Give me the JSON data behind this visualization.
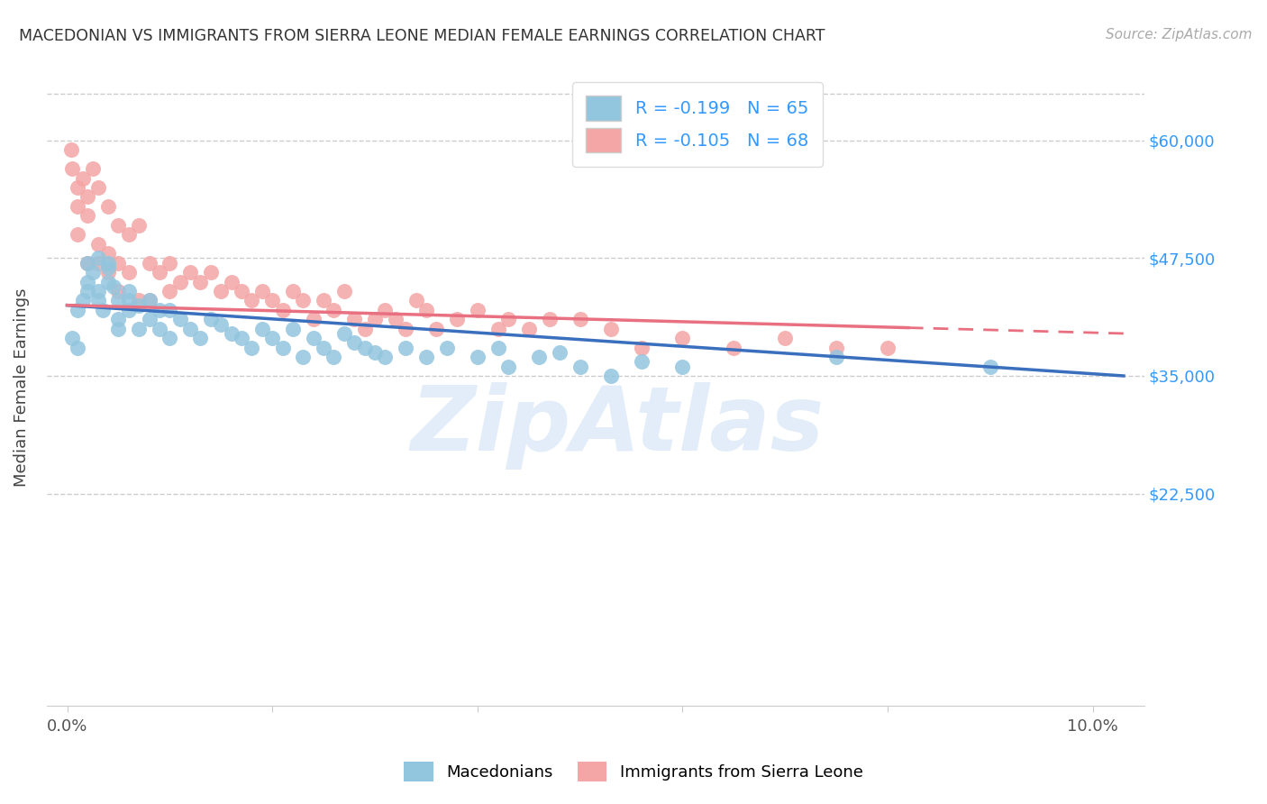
{
  "title": "MACEDONIAN VS IMMIGRANTS FROM SIERRA LEONE MEDIAN FEMALE EARNINGS CORRELATION CHART",
  "source": "Source: ZipAtlas.com",
  "ylabel_label": "Median Female Earnings",
  "blue_color": "#92c5de",
  "pink_color": "#f4a5a5",
  "blue_line_color": "#3a6fbe",
  "pink_line_color": "#e87080",
  "watermark": "ZipAtlas",
  "legend_label_1": "Macedonians",
  "legend_label_2": "Immigrants from Sierra Leone",
  "mac_R": "-0.199",
  "mac_N": "65",
  "sl_R": "-0.105",
  "sl_N": "68",
  "mac_scatter_x": [
    0.0005,
    0.001,
    0.001,
    0.0015,
    0.002,
    0.002,
    0.002,
    0.0025,
    0.003,
    0.003,
    0.003,
    0.0035,
    0.004,
    0.004,
    0.004,
    0.0045,
    0.005,
    0.005,
    0.005,
    0.006,
    0.006,
    0.006,
    0.007,
    0.007,
    0.008,
    0.008,
    0.009,
    0.009,
    0.01,
    0.01,
    0.011,
    0.012,
    0.013,
    0.014,
    0.015,
    0.016,
    0.017,
    0.018,
    0.019,
    0.02,
    0.021,
    0.022,
    0.023,
    0.024,
    0.025,
    0.026,
    0.027,
    0.028,
    0.029,
    0.03,
    0.031,
    0.033,
    0.035,
    0.037,
    0.04,
    0.042,
    0.043,
    0.046,
    0.048,
    0.05,
    0.053,
    0.056,
    0.06,
    0.075,
    0.09
  ],
  "mac_scatter_y": [
    39000,
    42000,
    38000,
    43000,
    44000,
    47000,
    45000,
    46000,
    47500,
    44000,
    43000,
    42000,
    45000,
    47000,
    46500,
    44500,
    43000,
    41000,
    40000,
    43000,
    42000,
    44000,
    42500,
    40000,
    43000,
    41000,
    42000,
    40000,
    42000,
    39000,
    41000,
    40000,
    39000,
    41000,
    40500,
    39500,
    39000,
    38000,
    40000,
    39000,
    38000,
    40000,
    37000,
    39000,
    38000,
    37000,
    39500,
    38500,
    38000,
    37500,
    37000,
    38000,
    37000,
    38000,
    37000,
    38000,
    36000,
    37000,
    37500,
    36000,
    35000,
    36500,
    36000,
    37000,
    36000
  ],
  "sl_scatter_x": [
    0.0004,
    0.0005,
    0.001,
    0.001,
    0.001,
    0.0015,
    0.002,
    0.002,
    0.002,
    0.0025,
    0.003,
    0.003,
    0.003,
    0.004,
    0.004,
    0.004,
    0.005,
    0.005,
    0.005,
    0.006,
    0.006,
    0.007,
    0.007,
    0.008,
    0.008,
    0.009,
    0.01,
    0.01,
    0.011,
    0.012,
    0.013,
    0.014,
    0.015,
    0.016,
    0.017,
    0.018,
    0.019,
    0.02,
    0.021,
    0.022,
    0.023,
    0.024,
    0.025,
    0.026,
    0.027,
    0.028,
    0.029,
    0.03,
    0.031,
    0.032,
    0.033,
    0.034,
    0.035,
    0.036,
    0.038,
    0.04,
    0.042,
    0.043,
    0.045,
    0.047,
    0.05,
    0.053,
    0.056,
    0.06,
    0.065,
    0.07,
    0.075,
    0.08
  ],
  "sl_scatter_y": [
    59000,
    57000,
    55000,
    53000,
    50000,
    56000,
    54000,
    52000,
    47000,
    57000,
    55000,
    49000,
    47000,
    53000,
    48000,
    46000,
    51000,
    47000,
    44000,
    50000,
    46000,
    51000,
    43000,
    47000,
    43000,
    46000,
    47000,
    44000,
    45000,
    46000,
    45000,
    46000,
    44000,
    45000,
    44000,
    43000,
    44000,
    43000,
    42000,
    44000,
    43000,
    41000,
    43000,
    42000,
    44000,
    41000,
    40000,
    41000,
    42000,
    41000,
    40000,
    43000,
    42000,
    40000,
    41000,
    42000,
    40000,
    41000,
    40000,
    41000,
    41000,
    40000,
    38000,
    39000,
    38000,
    39000,
    38000,
    38000
  ]
}
